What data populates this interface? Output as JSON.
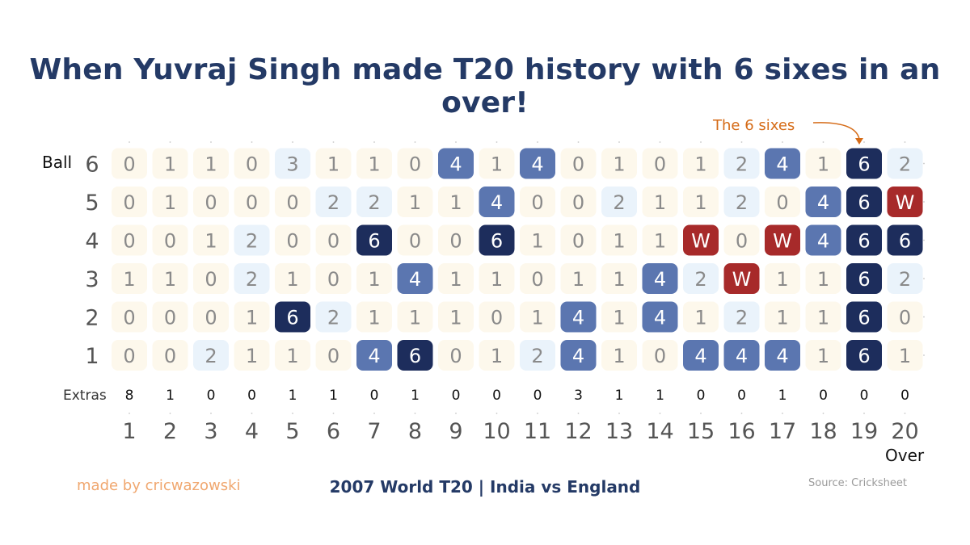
{
  "title": "When Yuvraj Singh made T20 history with 6 sixes in an over!",
  "subtitle": "2007 World T20 | India vs England",
  "made_by": "made by cricwazowski",
  "source": "Source: Cricksheet",
  "annotation": "The 6 sixes",
  "colors": {
    "title": "#243a66",
    "dot": "#fdf8ec",
    "run_1": "#fdf8ec",
    "run_2": "#eaf3fb",
    "run_3": "#eaf3fb",
    "four": "#5b76b0",
    "six": "#1d2d5c",
    "wicket": "#a72a2a",
    "annotation": "#d56b17",
    "made_by": "#f0a76f"
  },
  "chart_data": {
    "type": "heatmap",
    "title": "When Yuvraj Singh made T20 history with 6 sixes in an over!",
    "xlabel": "Over",
    "ylabel": "Ball",
    "x": [
      "1",
      "2",
      "3",
      "4",
      "5",
      "6",
      "7",
      "8",
      "9",
      "10",
      "11",
      "12",
      "13",
      "14",
      "15",
      "16",
      "17",
      "18",
      "19",
      "20"
    ],
    "y": [
      "1",
      "2",
      "3",
      "4",
      "5",
      "6"
    ],
    "overs": [
      [
        "0",
        "0",
        "1",
        "0",
        "0",
        "0"
      ],
      [
        "0",
        "0",
        "1",
        "0",
        "1",
        "1"
      ],
      [
        "2",
        "0",
        "0",
        "1",
        "0",
        "1"
      ],
      [
        "1",
        "1",
        "2",
        "2",
        "0",
        "0"
      ],
      [
        "1",
        "6",
        "1",
        "0",
        "0",
        "3"
      ],
      [
        "0",
        "2",
        "0",
        "0",
        "2",
        "1"
      ],
      [
        "4",
        "1",
        "1",
        "6",
        "2",
        "1"
      ],
      [
        "6",
        "1",
        "4",
        "0",
        "1",
        "0"
      ],
      [
        "0",
        "1",
        "1",
        "0",
        "1",
        "4"
      ],
      [
        "1",
        "0",
        "1",
        "6",
        "4",
        "1"
      ],
      [
        "2",
        "1",
        "0",
        "1",
        "0",
        "4"
      ],
      [
        "4",
        "4",
        "1",
        "0",
        "0",
        "0"
      ],
      [
        "1",
        "1",
        "1",
        "1",
        "2",
        "1"
      ],
      [
        "0",
        "4",
        "4",
        "1",
        "1",
        "0"
      ],
      [
        "4",
        "1",
        "2",
        "W",
        "1",
        "1"
      ],
      [
        "4",
        "2",
        "W",
        "0",
        "2",
        "2"
      ],
      [
        "4",
        "1",
        "1",
        "W",
        "0",
        "4"
      ],
      [
        "1",
        "1",
        "1",
        "4",
        "4",
        "1"
      ],
      [
        "6",
        "6",
        "6",
        "6",
        "6",
        "6"
      ],
      [
        "1",
        "0",
        "2",
        "6",
        "W",
        "2"
      ]
    ],
    "extras_label": "Extras",
    "extras": [
      8,
      1,
      0,
      0,
      1,
      1,
      0,
      1,
      0,
      0,
      0,
      3,
      1,
      1,
      0,
      0,
      1,
      0,
      0,
      0
    ],
    "highlight_over": "19"
  }
}
